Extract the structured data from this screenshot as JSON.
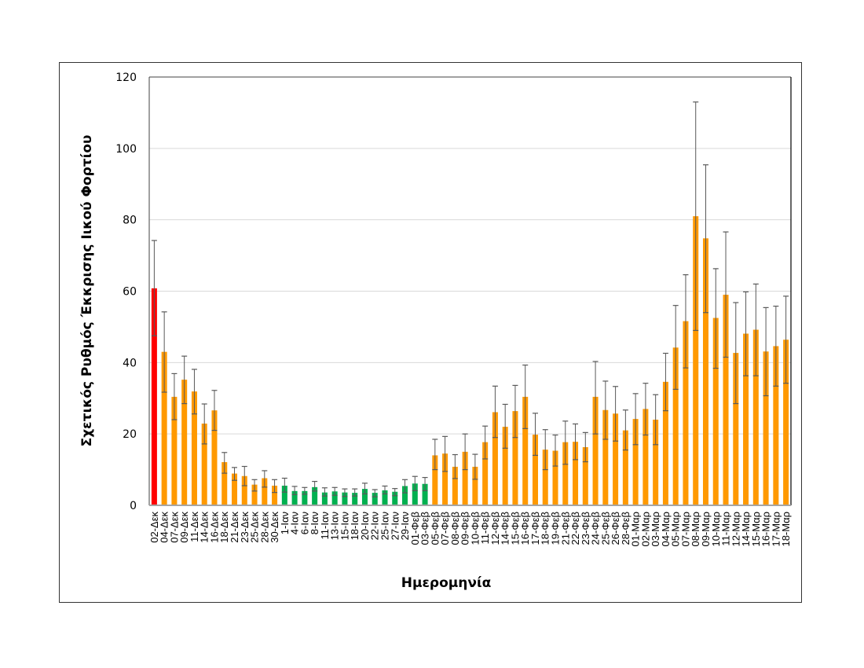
{
  "chart_data": {
    "type": "bar",
    "title": "",
    "xlabel": "Ημερομηνία",
    "ylabel": "Σχετικός Ρυθμός Έκκρισης Ιικού Φορτίου",
    "ylim": [
      0,
      120
    ],
    "yticks": [
      0,
      20,
      40,
      60,
      80,
      100,
      120
    ],
    "grid": true,
    "legend": null,
    "error_bars": true,
    "colors": {
      "red": "#FF0000",
      "orange": "#FF9900",
      "green": "#00B050",
      "error_bar": "#595959",
      "grid": "#D9D9D9",
      "axis": "#A6A6A6"
    },
    "categories": [
      "02-Δεκ",
      "04-Δεκ",
      "07-Δεκ",
      "09-Δεκ",
      "11-Δεκ",
      "14-Δεκ",
      "16-Δεκ",
      "18-Δεκ",
      "21-Δεκ",
      "23-Δεκ",
      "25-Δεκ",
      "28-Δεκ",
      "30-Δεκ",
      "1-Ιαν",
      "4-Ιαν",
      "6-Ιαν",
      "8-Ιαν",
      "11-Ιαν",
      "13-Ιαν",
      "15-Ιαν",
      "18-Ιαν",
      "20-Ιαν",
      "22-Ιαν",
      "25-Ιαν",
      "27-Ιαν",
      "29-Ιαν",
      "01-Φεβ",
      "03-Φεβ",
      "05-Φεβ",
      "07-Φεβ",
      "08-Φεβ",
      "09-Φεβ",
      "10-Φεβ",
      "11-Φεβ",
      "12-Φεβ",
      "14-Φεβ",
      "15-Φεβ",
      "16-Φεβ",
      "17-Φεβ",
      "18-Φεβ",
      "19-Φεβ",
      "21-Φεβ",
      "22-Φεβ",
      "23-Φεβ",
      "24-Φεβ",
      "25-Φεβ",
      "26-Φεβ",
      "28-Φεβ",
      "01-Μαρ",
      "02-Μαρ",
      "03-Μαρ",
      "04-Μαρ",
      "05-Μαρ",
      "07-Μαρ",
      "08-Μαρ",
      "09-Μαρ",
      "10-Μαρ",
      "11-Μαρ",
      "12-Μαρ",
      "14-Μαρ",
      "15-Μαρ",
      "16-Μαρ",
      "17-Μαρ",
      "18-Μαρ"
    ],
    "values": [
      60.8,
      43.0,
      30.4,
      35.2,
      31.9,
      22.9,
      26.6,
      12.1,
      8.9,
      8.2,
      5.8,
      7.6,
      5.5,
      5.5,
      4.0,
      4.0,
      5.1,
      3.6,
      3.9,
      3.6,
      3.5,
      4.6,
      3.5,
      4.2,
      3.8,
      5.4,
      6.1,
      6.0,
      14.0,
      14.5,
      10.8,
      15.0,
      10.8,
      17.7,
      26.1,
      22.0,
      26.4,
      30.4,
      19.8,
      15.6,
      15.3,
      17.7,
      17.8,
      16.3,
      30.4,
      26.7,
      25.7,
      21.0,
      24.2,
      27.0,
      24.0,
      34.6,
      44.2,
      51.6,
      81.0,
      74.8,
      52.5,
      59.0,
      42.7,
      48.1,
      49.2,
      43.1,
      44.6,
      46.4
    ],
    "error_low": [
      47.5,
      31.7,
      24.0,
      28.5,
      25.6,
      17.2,
      21.0,
      9.0,
      7.0,
      5.5,
      4.0,
      5.1,
      3.6,
      3.7,
      3.0,
      3.1,
      4.0,
      2.6,
      2.8,
      2.5,
      2.6,
      3.2,
      2.4,
      3.2,
      2.7,
      3.5,
      4.1,
      4.1,
      10.0,
      9.5,
      7.5,
      10.0,
      7.3,
      13.0,
      19.0,
      16.0,
      19.0,
      21.5,
      14.0,
      10.0,
      11.0,
      11.5,
      12.8,
      12.2,
      20.0,
      18.5,
      18.0,
      15.5,
      17.0,
      19.7,
      17.0,
      26.5,
      32.5,
      38.5,
      49.0,
      54.0,
      38.4,
      41.5,
      28.5,
      36.3,
      36.3,
      30.7,
      33.4,
      34.2
    ],
    "error_high": [
      74.2,
      54.2,
      36.9,
      41.8,
      38.1,
      28.4,
      32.2,
      14.8,
      10.6,
      10.9,
      7.2,
      9.7,
      7.2,
      7.6,
      5.3,
      5.0,
      6.7,
      4.9,
      5.0,
      4.6,
      4.6,
      6.2,
      4.4,
      5.4,
      4.7,
      7.2,
      8.1,
      7.8,
      18.5,
      19.3,
      14.2,
      20.0,
      14.3,
      22.2,
      33.4,
      28.3,
      33.6,
      39.3,
      25.8,
      21.2,
      19.7,
      23.6,
      22.8,
      20.4,
      40.3,
      34.8,
      33.3,
      26.7,
      31.3,
      34.2,
      31.0,
      42.6,
      56.0,
      64.6,
      113.0,
      95.4,
      66.3,
      76.6,
      56.8,
      59.8,
      62.0,
      55.4,
      55.8,
      58.6
    ],
    "bar_colors": [
      "red",
      "orange",
      "orange",
      "orange",
      "orange",
      "orange",
      "orange",
      "orange",
      "orange",
      "orange",
      "orange",
      "orange",
      "orange",
      "green",
      "green",
      "green",
      "green",
      "green",
      "green",
      "green",
      "green",
      "green",
      "green",
      "green",
      "green",
      "green",
      "green",
      "green",
      "orange",
      "orange",
      "orange",
      "orange",
      "orange",
      "orange",
      "orange",
      "orange",
      "orange",
      "orange",
      "orange",
      "orange",
      "orange",
      "orange",
      "orange",
      "orange",
      "orange",
      "orange",
      "orange",
      "orange",
      "orange",
      "orange",
      "orange",
      "orange",
      "orange",
      "orange",
      "orange",
      "orange",
      "orange",
      "orange",
      "orange",
      "orange",
      "orange",
      "orange",
      "orange",
      "orange"
    ]
  }
}
